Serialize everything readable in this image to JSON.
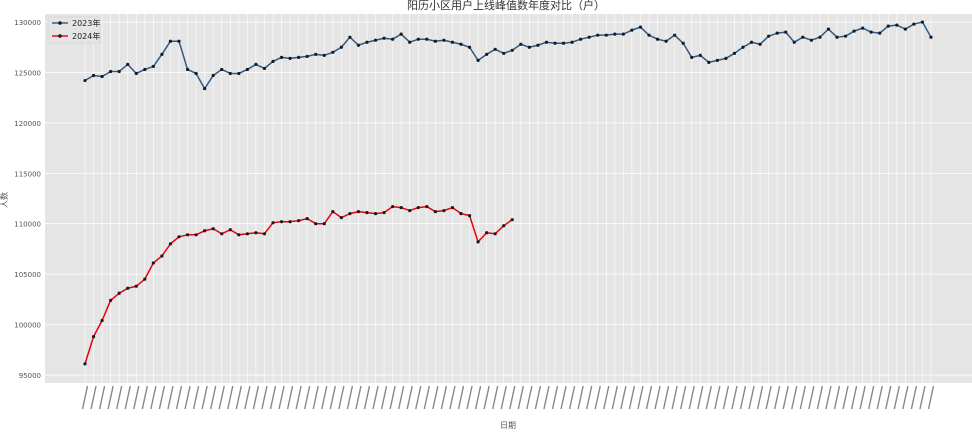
{
  "chart_data": {
    "type": "line",
    "title": "阳历小区用户上线峰值数年度对比（户）",
    "xlabel": "日期",
    "ylabel": "人数",
    "ylim": [
      94200,
      130800
    ],
    "yticks": [
      95000,
      100000,
      105000,
      110000,
      115000,
      120000,
      125000,
      130000
    ],
    "grid": true,
    "legend_position": "top-left",
    "background_color": "#e5e5e5",
    "grid_color": "#ffffff",
    "x_tick_labels_visible": false,
    "series": [
      {
        "name": "2023年",
        "color": "#2b5a8a",
        "marker": "circle",
        "values": [
          124200,
          124700,
          124600,
          125100,
          125100,
          125800,
          124900,
          125300,
          125600,
          126800,
          128100,
          128100,
          125300,
          124900,
          123400,
          124700,
          125300,
          124900,
          124900,
          125300,
          125800,
          125400,
          126100,
          126500,
          126400,
          126500,
          126600,
          126800,
          126700,
          127000,
          127500,
          128500,
          127700,
          128000,
          128200,
          128400,
          128300,
          128800,
          128000,
          128300,
          128300,
          128100,
          128200,
          128000,
          127800,
          127500,
          126200,
          126800,
          127300,
          126900,
          127200,
          127800,
          127500,
          127700,
          128000,
          127900,
          127900,
          128000,
          128300,
          128500,
          128700,
          128700,
          128800,
          128800,
          129200,
          129500,
          128700,
          128300,
          128100,
          128700,
          127900,
          126500,
          126700,
          126000,
          126200,
          126400,
          126900,
          127500,
          128000,
          127800,
          128600,
          128900,
          129000,
          128000,
          128500,
          128200,
          128500,
          129300,
          128500,
          128600,
          129100,
          129400,
          129000,
          128900,
          129600,
          129700,
          129300,
          129800,
          130000,
          128500
        ]
      },
      {
        "name": "2024年",
        "color": "#e8000b",
        "marker": "circle",
        "values": [
          96100,
          98800,
          100400,
          102400,
          103100,
          103600,
          103800,
          104500,
          106100,
          106800,
          108000,
          108700,
          108900,
          108900,
          109300,
          109500,
          109000,
          109400,
          108900,
          109000,
          109100,
          109000,
          110100,
          110200,
          110200,
          110300,
          110500,
          110000,
          110000,
          111200,
          110600,
          111000,
          111200,
          111100,
          111000,
          111100,
          111700,
          111600,
          111300,
          111600,
          111700,
          111200,
          111300,
          111600,
          111000,
          110800,
          108200,
          109100,
          109000,
          109800,
          110400
        ]
      }
    ]
  }
}
